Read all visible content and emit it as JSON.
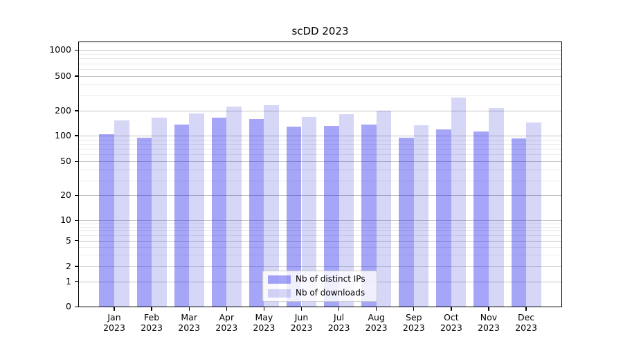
{
  "chart_data": {
    "type": "bar",
    "title": "scDD 2023",
    "categories": [
      "Jan 2023",
      "Feb 2023",
      "Mar 2023",
      "Apr 2023",
      "May 2023",
      "Jun 2023",
      "Jul 2023",
      "Aug 2023",
      "Sep 2023",
      "Oct 2023",
      "Nov 2023",
      "Dec 2023"
    ],
    "series": [
      {
        "name": "Nb of distinct IPs",
        "color": "#0000eb",
        "alpha": 0.35,
        "solid_color": "#a8a8f8",
        "values": [
          103,
          94,
          136,
          166,
          158,
          128,
          130,
          137,
          95,
          118,
          112,
          92
        ]
      },
      {
        "name": "Nb of downloads",
        "color": "#0000c8",
        "alpha": 0.16,
        "solid_color": "#d8d8f7",
        "values": [
          153,
          164,
          184,
          225,
          230,
          167,
          180,
          200,
          134,
          285,
          215,
          143
        ]
      }
    ],
    "xlabel": "",
    "ylabel": "",
    "yscale": "symlog",
    "y_ticks": [
      0,
      1,
      2,
      5,
      10,
      20,
      50,
      100,
      200,
      500,
      1000
    ],
    "ylim": [
      0,
      1250
    ],
    "grid": true,
    "legend_position": "lower center",
    "background_color": "#ffffff",
    "major_grid_color": "#c3c3c3",
    "minor_grid_color": "#e9e9e9"
  }
}
